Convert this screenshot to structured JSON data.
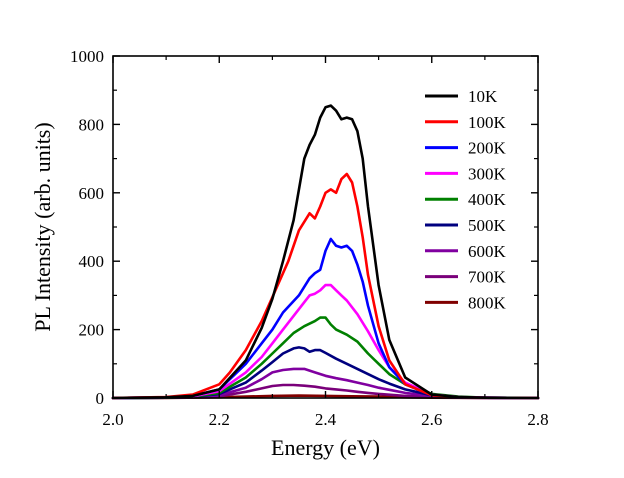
{
  "chart_data": {
    "type": "line",
    "title": "",
    "xlabel": "Energy (eV)",
    "ylabel": "PL Intensity (arb. units)",
    "xlim": [
      2.0,
      2.8
    ],
    "ylim": [
      0,
      1000
    ],
    "xticks": [
      2.0,
      2.2,
      2.4,
      2.6,
      2.8
    ],
    "xtick_labels": [
      "2.0",
      "2.2",
      "2.4",
      "2.6",
      "2.8"
    ],
    "yticks": [
      0,
      200,
      400,
      600,
      800,
      1000
    ],
    "ytick_labels": [
      "0",
      "200",
      "400",
      "600",
      "800",
      "1000"
    ],
    "grid": false,
    "legend_position": "top-right",
    "series": [
      {
        "name": "10K",
        "color": "#000000",
        "x": [
          2.0,
          2.1,
          2.15,
          2.2,
          2.25,
          2.28,
          2.3,
          2.32,
          2.34,
          2.36,
          2.37,
          2.38,
          2.39,
          2.4,
          2.41,
          2.42,
          2.43,
          2.44,
          2.45,
          2.46,
          2.47,
          2.48,
          2.5,
          2.52,
          2.55,
          2.6,
          2.65,
          2.7,
          2.8
        ],
        "y": [
          0,
          2,
          6,
          25,
          110,
          205,
          290,
          400,
          520,
          700,
          740,
          770,
          820,
          850,
          855,
          840,
          815,
          820,
          815,
          780,
          700,
          560,
          330,
          170,
          60,
          10,
          3,
          1,
          0
        ]
      },
      {
        "name": "100K",
        "color": "#ff0000",
        "x": [
          2.0,
          2.1,
          2.15,
          2.2,
          2.22,
          2.25,
          2.28,
          2.3,
          2.33,
          2.35,
          2.37,
          2.38,
          2.39,
          2.4,
          2.41,
          2.42,
          2.43,
          2.44,
          2.45,
          2.46,
          2.47,
          2.48,
          2.5,
          2.52,
          2.55,
          2.6,
          2.65,
          2.7,
          2.8
        ],
        "y": [
          0,
          3,
          10,
          40,
          75,
          140,
          225,
          295,
          400,
          490,
          540,
          525,
          560,
          600,
          610,
          600,
          640,
          655,
          630,
          560,
          470,
          360,
          210,
          110,
          40,
          8,
          2,
          1,
          0
        ]
      },
      {
        "name": "200K",
        "color": "#0000ff",
        "x": [
          2.0,
          2.1,
          2.15,
          2.2,
          2.25,
          2.28,
          2.3,
          2.32,
          2.35,
          2.37,
          2.38,
          2.39,
          2.4,
          2.41,
          2.42,
          2.43,
          2.44,
          2.45,
          2.46,
          2.47,
          2.48,
          2.5,
          2.52,
          2.55,
          2.6,
          2.65,
          2.7,
          2.8
        ],
        "y": [
          0,
          2,
          6,
          25,
          100,
          160,
          200,
          250,
          300,
          350,
          365,
          375,
          430,
          465,
          445,
          440,
          445,
          430,
          390,
          340,
          270,
          160,
          90,
          40,
          8,
          2,
          1,
          0
        ]
      },
      {
        "name": "300K",
        "color": "#ff00ff",
        "x": [
          2.0,
          2.1,
          2.15,
          2.2,
          2.25,
          2.28,
          2.3,
          2.32,
          2.34,
          2.36,
          2.37,
          2.38,
          2.39,
          2.4,
          2.41,
          2.42,
          2.43,
          2.44,
          2.46,
          2.48,
          2.5,
          2.52,
          2.55,
          2.6,
          2.65,
          2.7,
          2.8
        ],
        "y": [
          0,
          2,
          5,
          20,
          75,
          120,
          160,
          200,
          240,
          280,
          300,
          305,
          315,
          330,
          330,
          315,
          300,
          285,
          245,
          195,
          140,
          90,
          45,
          10,
          3,
          1,
          0
        ]
      },
      {
        "name": "400K",
        "color": "#008000",
        "x": [
          2.0,
          2.1,
          2.15,
          2.2,
          2.25,
          2.28,
          2.3,
          2.32,
          2.34,
          2.36,
          2.38,
          2.39,
          2.4,
          2.41,
          2.42,
          2.44,
          2.46,
          2.48,
          2.5,
          2.52,
          2.55,
          2.6,
          2.65,
          2.7,
          2.8
        ],
        "y": [
          0,
          1,
          4,
          15,
          60,
          100,
          130,
          160,
          190,
          210,
          225,
          235,
          235,
          215,
          200,
          185,
          165,
          130,
          100,
          70,
          40,
          12,
          4,
          1,
          0
        ]
      },
      {
        "name": "500K",
        "color": "#00007f",
        "x": [
          2.0,
          2.1,
          2.15,
          2.2,
          2.25,
          2.28,
          2.3,
          2.32,
          2.34,
          2.35,
          2.36,
          2.37,
          2.38,
          2.39,
          2.4,
          2.42,
          2.44,
          2.46,
          2.48,
          2.5,
          2.52,
          2.55,
          2.6,
          2.65,
          2.7,
          2.8
        ],
        "y": [
          0,
          1,
          3,
          12,
          45,
          80,
          105,
          130,
          145,
          148,
          145,
          135,
          140,
          140,
          132,
          115,
          100,
          85,
          70,
          55,
          42,
          25,
          8,
          2,
          1,
          0
        ]
      },
      {
        "name": "600K",
        "color": "#8000a0",
        "x": [
          2.0,
          2.1,
          2.15,
          2.2,
          2.25,
          2.28,
          2.3,
          2.32,
          2.34,
          2.36,
          2.38,
          2.4,
          2.42,
          2.44,
          2.46,
          2.48,
          2.5,
          2.52,
          2.55,
          2.6,
          2.65,
          2.7,
          2.8
        ],
        "y": [
          0,
          1,
          2,
          8,
          30,
          55,
          75,
          82,
          85,
          85,
          75,
          65,
          58,
          52,
          45,
          38,
          30,
          24,
          15,
          6,
          2,
          1,
          0
        ]
      },
      {
        "name": "700K",
        "color": "#7a007a",
        "x": [
          2.0,
          2.1,
          2.15,
          2.2,
          2.25,
          2.28,
          2.3,
          2.32,
          2.34,
          2.36,
          2.38,
          2.4,
          2.42,
          2.44,
          2.46,
          2.48,
          2.5,
          2.55,
          2.6,
          2.65,
          2.7,
          2.8
        ],
        "y": [
          0,
          1,
          2,
          5,
          18,
          28,
          35,
          38,
          38,
          36,
          33,
          28,
          25,
          22,
          18,
          15,
          12,
          6,
          3,
          1,
          0,
          0
        ]
      },
      {
        "name": "800K",
        "color": "#800000",
        "x": [
          2.0,
          2.1,
          2.2,
          2.25,
          2.3,
          2.35,
          2.4,
          2.45,
          2.5,
          2.55,
          2.6,
          2.7,
          2.8
        ],
        "y": [
          0,
          0,
          2,
          4,
          6,
          7,
          6,
          5,
          4,
          2,
          1,
          0,
          0
        ]
      }
    ]
  }
}
